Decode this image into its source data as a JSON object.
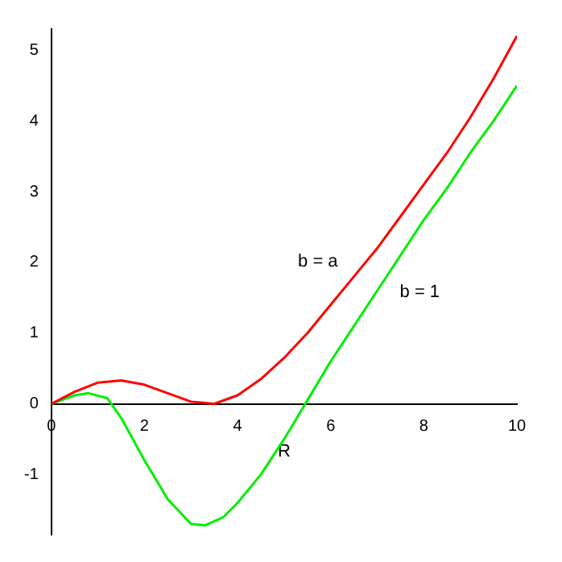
{
  "chart_data": {
    "type": "line",
    "xlabel": "R",
    "xlim": [
      0,
      10
    ],
    "ylim": [
      -1.85,
      5.3
    ],
    "xticks": [
      0,
      2,
      4,
      6,
      8,
      10
    ],
    "yticks": [
      -1,
      0,
      1,
      2,
      3,
      4,
      5
    ],
    "grid": false,
    "legend": false,
    "marker": "none",
    "line_style": "solid",
    "series": [
      {
        "name": "b = a",
        "color": "#ff0000",
        "x": [
          0,
          0.5,
          1,
          1.5,
          2,
          2.5,
          3,
          3.5,
          4,
          4.5,
          5,
          5.5,
          6,
          6.5,
          7,
          7.5,
          8,
          8.5,
          9,
          9.5,
          10
        ],
        "values": [
          0,
          0.17,
          0.3,
          0.33,
          0.27,
          0.15,
          0.03,
          0,
          0.12,
          0.35,
          0.65,
          1.0,
          1.4,
          1.8,
          2.2,
          2.65,
          3.1,
          3.55,
          4.05,
          4.6,
          5.2
        ]
      },
      {
        "name": "b = 1",
        "color": "#00ee00",
        "x": [
          0,
          0.5,
          0.8,
          1.2,
          1.5,
          2,
          2.5,
          3,
          3.3,
          3.7,
          4,
          4.5,
          5,
          5.5,
          6,
          6.5,
          7,
          7.5,
          8,
          8.5,
          9,
          9.5,
          10
        ],
        "values": [
          0,
          0.12,
          0.15,
          0.08,
          -0.2,
          -0.8,
          -1.35,
          -1.7,
          -1.72,
          -1.6,
          -1.4,
          -1.0,
          -0.5,
          0.05,
          0.6,
          1.1,
          1.6,
          2.1,
          2.6,
          3.05,
          3.55,
          4.0,
          4.5
        ]
      }
    ]
  }
}
